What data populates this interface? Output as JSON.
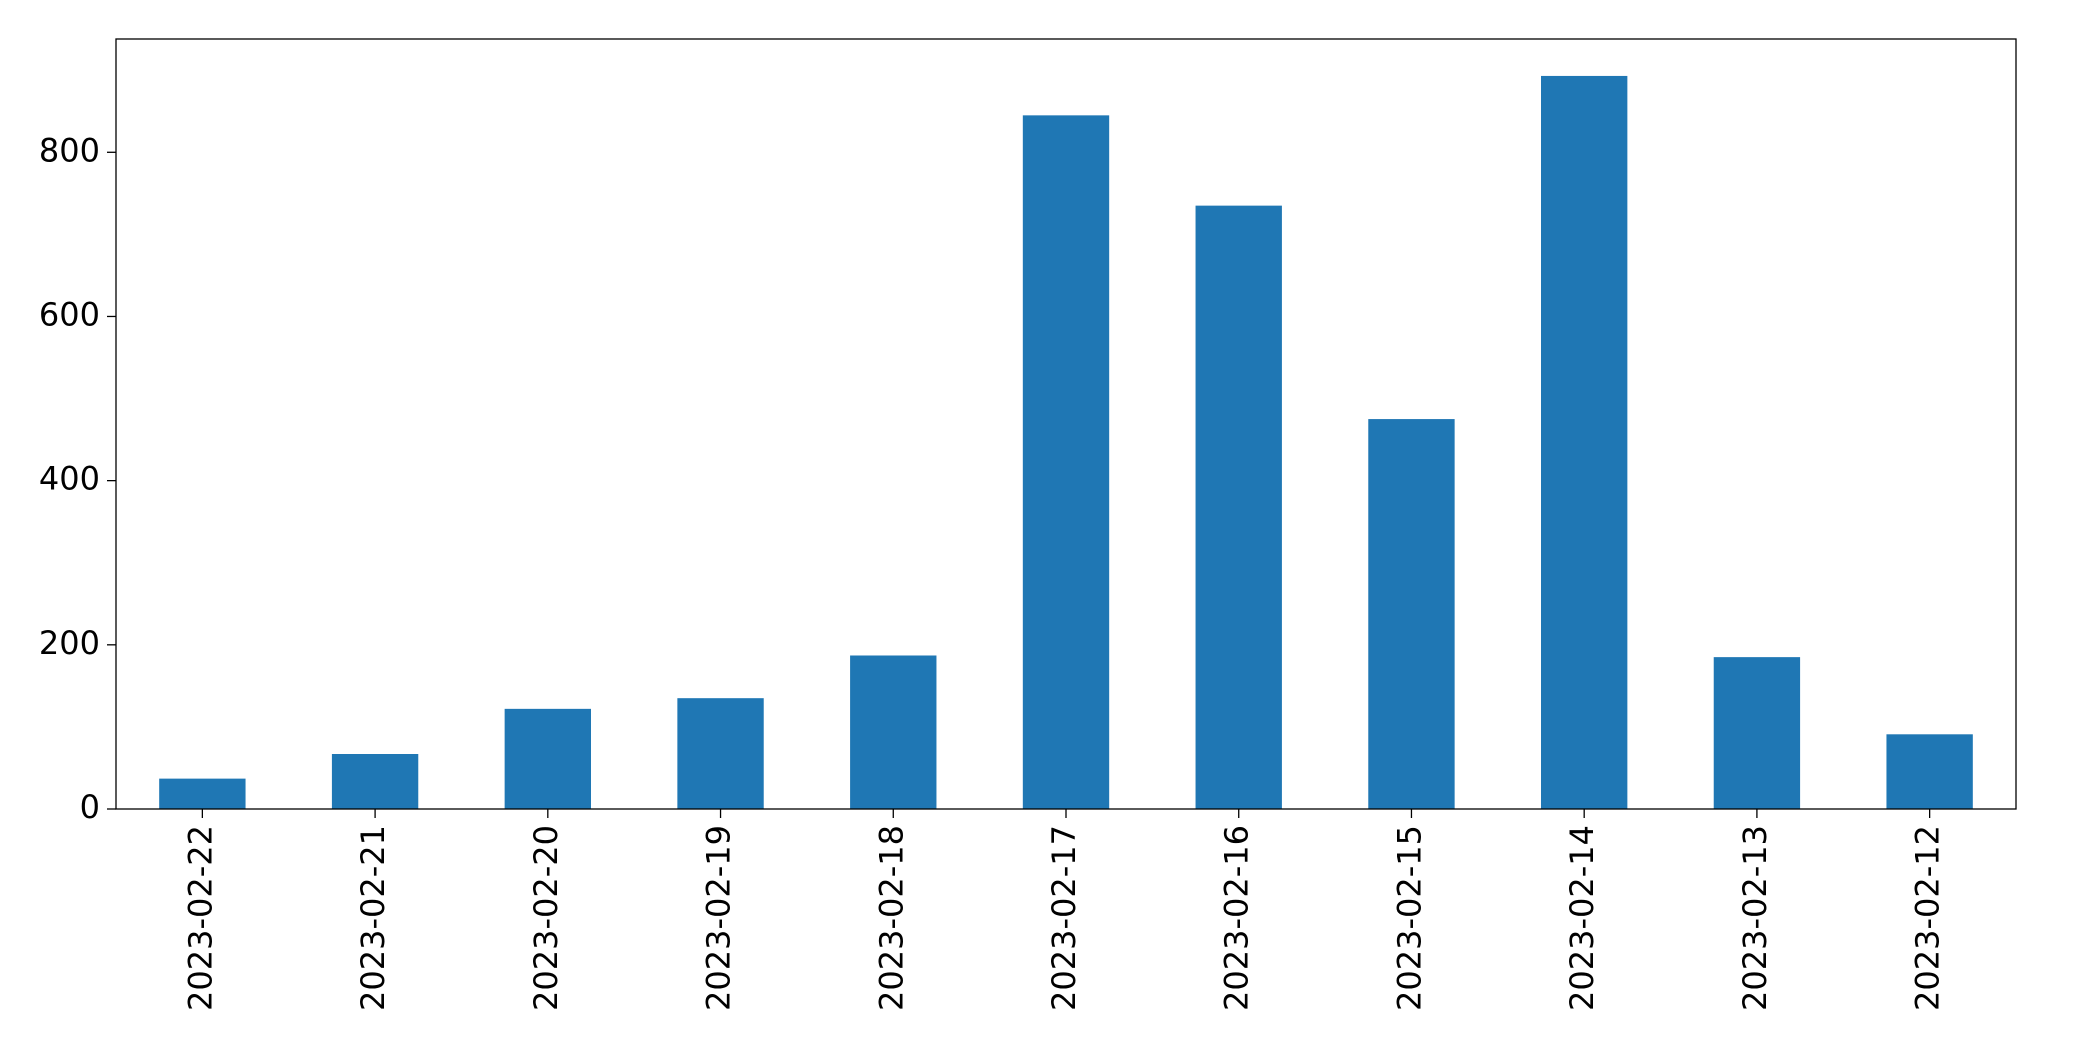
{
  "chart_data": {
    "type": "bar",
    "categories": [
      "2023-02-22",
      "2023-02-21",
      "2023-02-20",
      "2023-02-19",
      "2023-02-18",
      "2023-02-17",
      "2023-02-16",
      "2023-02-15",
      "2023-02-14",
      "2023-02-13",
      "2023-02-12"
    ],
    "values": [
      37,
      67,
      122,
      135,
      187,
      845,
      735,
      475,
      893,
      185,
      91
    ],
    "color": "#1f77b4",
    "ylim": [
      0,
      938
    ],
    "yticks": [
      0,
      200,
      400,
      600,
      800
    ],
    "grid": false
  }
}
